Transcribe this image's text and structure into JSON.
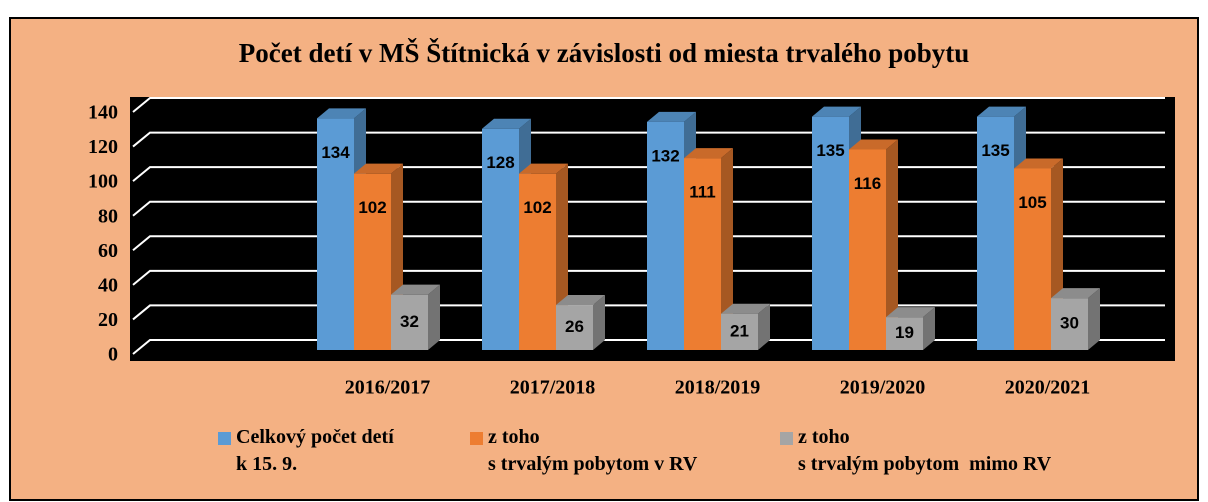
{
  "chart_data": {
    "type": "bar3d",
    "title": "Počet detí v MŠ Štítnická v závislosti od miesta trvalého pobytu",
    "categories": [
      null,
      "2016/2017",
      "2017/2018",
      "2018/2019",
      "2019/2020",
      "2020/2021"
    ],
    "series": [
      {
        "name": "Celkový počet detí\nk 15. 9.",
        "color": "#5b9bd5",
        "values": [
          null,
          134,
          128,
          132,
          135,
          135
        ]
      },
      {
        "name": "z toho\ns trvalým pobytom v RV",
        "color": "#ed7d31",
        "values": [
          null,
          102,
          102,
          111,
          116,
          105
        ]
      },
      {
        "name": "z toho\ns trvalým pobytom  mimo RV",
        "color": "#a5a5a5",
        "values": [
          null,
          32,
          26,
          21,
          19,
          30
        ]
      }
    ],
    "ylim": [
      0,
      140
    ],
    "yticks": [
      0,
      20,
      40,
      60,
      80,
      100,
      120,
      140
    ],
    "grid": true,
    "background": "#f4b183",
    "plot_background": "#000000",
    "legend": "bottom"
  }
}
